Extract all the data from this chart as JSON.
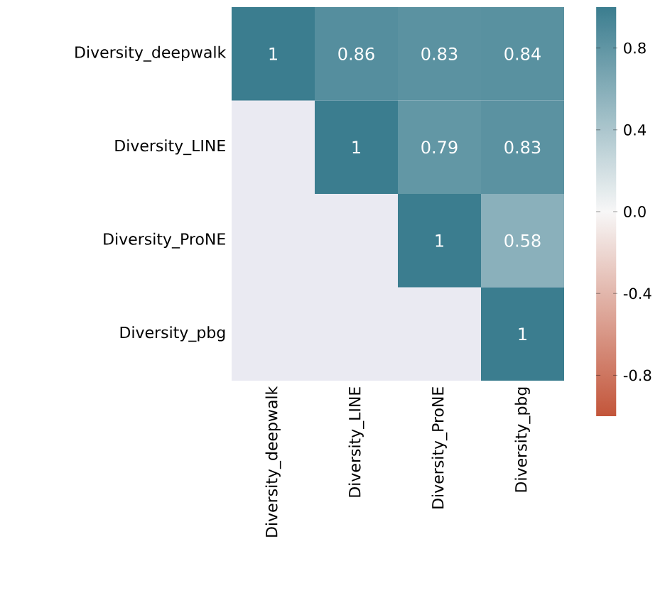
{
  "chart_data": {
    "type": "heatmap",
    "categories": [
      "Diversity_deepwalk",
      "Diversity_LINE",
      "Diversity_ProNE",
      "Diversity_pbg"
    ],
    "y_categories": [
      "Diversity_deepwalk",
      "Diversity_LINE",
      "Diversity_ProNE",
      "Diversity_pbg"
    ],
    "cells": [
      [
        1,
        0.86,
        0.83,
        0.84
      ],
      [
        null,
        1,
        0.79,
        0.83
      ],
      [
        null,
        null,
        1,
        0.58
      ],
      [
        null,
        null,
        null,
        1
      ]
    ],
    "clim": [
      -1,
      1
    ],
    "cticks": [
      -0.8,
      -0.4,
      {
        "value": 0,
        "label": "0.0"
      },
      0.4,
      0.8
    ],
    "data_labels": true
  }
}
